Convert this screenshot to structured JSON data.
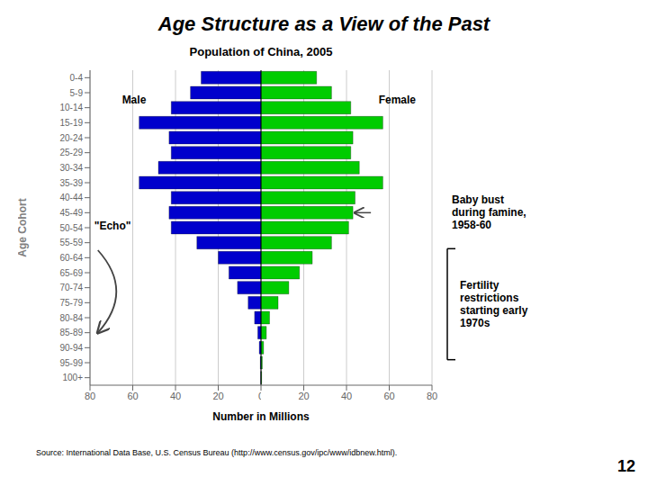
{
  "chart_data": {
    "type": "bar",
    "orientation": "horizontal",
    "title": "Age Structure as a View of the Past",
    "subtitle": "Population of China, 2005",
    "xlabel": "Number in Millions",
    "ylabel": "Age Cohort",
    "categories": [
      "0-4",
      "5-9",
      "10-14",
      "15-19",
      "20-24",
      "25-29",
      "30-34",
      "35-39",
      "40-44",
      "45-49",
      "50-54",
      "55-59",
      "60-64",
      "65-69",
      "70-74",
      "75-79",
      "80-84",
      "85-89",
      "90-94",
      "95-99",
      "100+"
    ],
    "series": [
      {
        "name": "Male",
        "color": "#0000cc",
        "values": [
          28,
          33,
          42,
          57,
          43,
          42,
          48,
          57,
          42,
          43,
          42,
          30,
          20,
          15,
          11,
          6,
          3,
          1.5,
          0.8,
          0.3,
          0.1
        ]
      },
      {
        "name": "Female",
        "color": "#00cc00",
        "values": [
          26,
          33,
          42,
          57,
          43,
          42,
          46,
          57,
          44,
          43,
          41,
          33,
          24,
          18,
          13,
          8,
          4,
          2.5,
          1.2,
          0.6,
          0.3
        ]
      }
    ],
    "xlim": [
      0,
      80
    ],
    "xticks": [
      0,
      20,
      40,
      60,
      80
    ],
    "grid": true,
    "annotations": [
      "Baby bust\nduring famine,\n1958-60",
      "Fertility\nrestrictions\nstarting early\n1970s",
      "\"Echo\""
    ],
    "source": "Source:  International Data Base, U.S. Census Bureau   (http://www.census.gov/ipc/www/idbnew.html).",
    "slide_number": "12"
  }
}
